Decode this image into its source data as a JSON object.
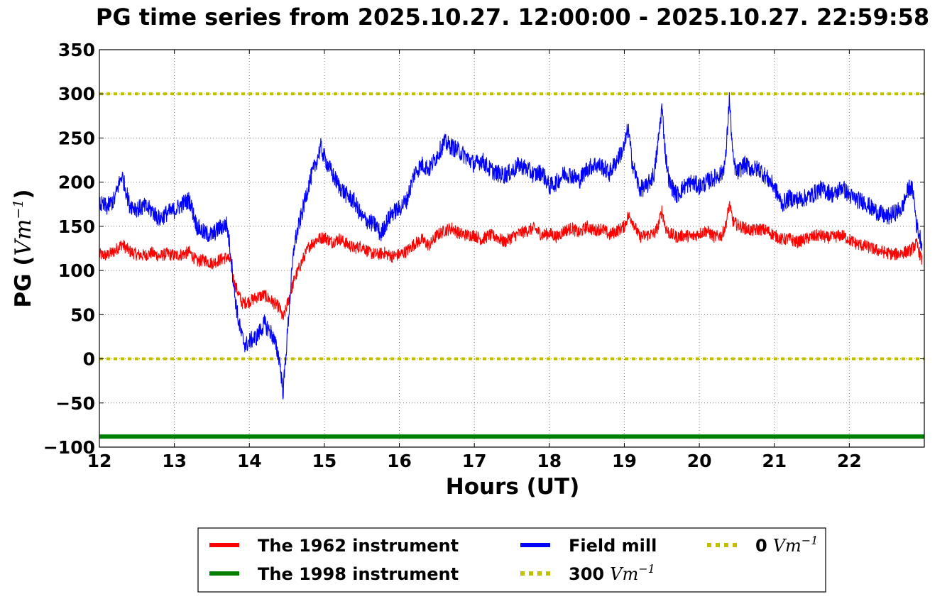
{
  "chart_data": {
    "type": "line",
    "title": "PG time series from 2025.10.27. 12:00:00 - 2025.10.27. 22:59:58",
    "xlabel": "Hours (UT)",
    "ylabel_prefix": "PG (",
    "ylabel_unit": "Vm",
    "ylabel_exp": "−1",
    "ylabel_suffix": ")",
    "xlim": [
      12,
      23
    ],
    "ylim": [
      -100,
      350
    ],
    "xticks": [
      12,
      13,
      14,
      15,
      16,
      17,
      18,
      19,
      20,
      21,
      22
    ],
    "xtick_labels": [
      "12",
      "13",
      "14",
      "15",
      "16",
      "17",
      "18",
      "19",
      "20",
      "21",
      "22"
    ],
    "yticks": [
      -100,
      -50,
      0,
      50,
      100,
      150,
      200,
      250,
      300,
      350
    ],
    "ytick_labels": [
      "−100",
      "−50",
      "0",
      "50",
      "100",
      "150",
      "200",
      "250",
      "300",
      "350"
    ],
    "grid": true,
    "legend_position": "below plot, centered",
    "series": [
      {
        "name": "The 1962 instrument",
        "color": "#ff0000",
        "style": "solid",
        "x": [
          12.0,
          12.1,
          12.2,
          12.3,
          12.4,
          12.5,
          12.6,
          12.7,
          12.8,
          12.9,
          13.0,
          13.1,
          13.2,
          13.3,
          13.4,
          13.5,
          13.6,
          13.7,
          13.75,
          13.8,
          13.85,
          13.9,
          14.0,
          14.1,
          14.2,
          14.3,
          14.4,
          14.45,
          14.5,
          14.55,
          14.6,
          14.7,
          14.8,
          14.9,
          15.0,
          15.1,
          15.2,
          15.3,
          15.4,
          15.5,
          15.6,
          15.7,
          15.8,
          15.9,
          16.0,
          16.1,
          16.2,
          16.3,
          16.4,
          16.5,
          16.6,
          16.7,
          16.8,
          16.9,
          17.0,
          17.1,
          17.2,
          17.3,
          17.4,
          17.5,
          17.6,
          17.7,
          17.8,
          17.9,
          18.0,
          18.1,
          18.2,
          18.3,
          18.4,
          18.5,
          18.6,
          18.7,
          18.8,
          18.9,
          19.0,
          19.05,
          19.1,
          19.2,
          19.3,
          19.4,
          19.45,
          19.5,
          19.55,
          19.6,
          19.7,
          19.8,
          19.9,
          20.0,
          20.1,
          20.2,
          20.3,
          20.35,
          20.4,
          20.45,
          20.5,
          20.6,
          20.7,
          20.8,
          20.9,
          21.0,
          21.1,
          21.2,
          21.3,
          21.4,
          21.5,
          21.6,
          21.7,
          21.8,
          21.9,
          22.0,
          22.1,
          22.2,
          22.3,
          22.4,
          22.5,
          22.6,
          22.7,
          22.8,
          22.9,
          22.97
        ],
        "y": [
          118,
          117,
          122,
          130,
          122,
          118,
          117,
          120,
          116,
          119,
          117,
          118,
          121,
          110,
          112,
          108,
          112,
          115,
          110,
          85,
          75,
          63,
          65,
          70,
          72,
          65,
          58,
          45,
          60,
          75,
          90,
          110,
          128,
          135,
          138,
          132,
          136,
          130,
          125,
          128,
          120,
          118,
          120,
          116,
          118,
          122,
          130,
          135,
          128,
          140,
          145,
          148,
          142,
          140,
          140,
          135,
          140,
          138,
          132,
          138,
          142,
          145,
          148,
          140,
          142,
          138,
          145,
          148,
          142,
          150,
          145,
          148,
          140,
          145,
          150,
          162,
          158,
          138,
          140,
          142,
          150,
          168,
          148,
          142,
          138,
          140,
          138,
          142,
          145,
          138,
          140,
          150,
          175,
          155,
          152,
          148,
          145,
          147,
          145,
          140,
          135,
          136,
          132,
          135,
          138,
          140,
          137,
          138,
          140,
          135,
          130,
          128,
          125,
          122,
          120,
          118,
          120,
          122,
          130,
          110
        ],
        "noise": 7
      },
      {
        "name": "The 1998 instrument",
        "color": "#008000",
        "style": "solid-thick",
        "x": [
          12.0,
          23.0
        ],
        "y": [
          -88,
          -88
        ],
        "noise": 0
      },
      {
        "name": "Field mill",
        "color": "#0000ff",
        "style": "solid",
        "x": [
          12.0,
          12.1,
          12.2,
          12.25,
          12.3,
          12.35,
          12.4,
          12.5,
          12.6,
          12.7,
          12.8,
          12.9,
          13.0,
          13.1,
          13.2,
          13.3,
          13.4,
          13.5,
          13.6,
          13.7,
          13.75,
          13.8,
          13.85,
          13.9,
          13.95,
          14.0,
          14.1,
          14.2,
          14.3,
          14.35,
          14.4,
          14.45,
          14.5,
          14.55,
          14.6,
          14.7,
          14.8,
          14.9,
          14.95,
          15.0,
          15.1,
          15.2,
          15.3,
          15.4,
          15.5,
          15.6,
          15.7,
          15.75,
          15.8,
          15.9,
          16.0,
          16.1,
          16.2,
          16.3,
          16.4,
          16.5,
          16.6,
          16.7,
          16.8,
          16.9,
          17.0,
          17.1,
          17.2,
          17.3,
          17.4,
          17.5,
          17.6,
          17.7,
          17.8,
          17.9,
          18.0,
          18.1,
          18.2,
          18.3,
          18.4,
          18.5,
          18.6,
          18.7,
          18.8,
          18.9,
          19.0,
          19.05,
          19.1,
          19.2,
          19.3,
          19.4,
          19.45,
          19.5,
          19.55,
          19.6,
          19.7,
          19.8,
          19.9,
          20.0,
          20.1,
          20.2,
          20.3,
          20.35,
          20.4,
          20.45,
          20.5,
          20.6,
          20.7,
          20.8,
          20.9,
          21.0,
          21.1,
          21.2,
          21.3,
          21.4,
          21.5,
          21.6,
          21.7,
          21.8,
          21.9,
          22.0,
          22.1,
          22.2,
          22.3,
          22.4,
          22.5,
          22.6,
          22.7,
          22.8,
          22.85,
          22.9,
          22.97
        ],
        "y": [
          175,
          172,
          180,
          195,
          208,
          192,
          175,
          170,
          172,
          168,
          158,
          165,
          168,
          175,
          180,
          150,
          142,
          140,
          148,
          152,
          120,
          75,
          45,
          25,
          15,
          20,
          25,
          40,
          28,
          15,
          0,
          -38,
          20,
          80,
          130,
          165,
          200,
          225,
          240,
          228,
          210,
          195,
          185,
          178,
          160,
          155,
          150,
          140,
          150,
          165,
          170,
          180,
          210,
          220,
          215,
          230,
          245,
          240,
          235,
          228,
          220,
          225,
          215,
          210,
          208,
          212,
          220,
          215,
          208,
          212,
          195,
          200,
          210,
          208,
          202,
          215,
          220,
          218,
          210,
          225,
          240,
          262,
          225,
          192,
          195,
          210,
          245,
          285,
          230,
          200,
          185,
          195,
          200,
          195,
          200,
          205,
          210,
          225,
          295,
          225,
          210,
          220,
          215,
          215,
          205,
          195,
          175,
          182,
          180,
          182,
          185,
          192,
          190,
          185,
          195,
          185,
          180,
          178,
          170,
          165,
          160,
          165,
          170,
          195,
          190,
          150,
          130
        ],
        "noise": 10
      },
      {
        "name": "300",
        "legend_unit": "Vm",
        "legend_exp": "−1",
        "color": "#bfbf00",
        "style": "dotted",
        "x": [
          12.0,
          23.0
        ],
        "y": [
          300,
          300
        ],
        "noise": 0
      },
      {
        "name": "0",
        "legend_unit": "Vm",
        "legend_exp": "−1",
        "color": "#bfbf00",
        "style": "dotted",
        "x": [
          12.0,
          23.0
        ],
        "y": [
          0,
          0
        ],
        "noise": 0
      }
    ]
  }
}
